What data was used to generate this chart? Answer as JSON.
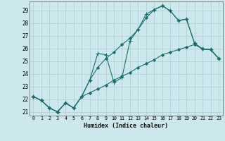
{
  "xlabel": "Humidex (Indice chaleur)",
  "background_color": "#cce8ec",
  "grid_color": "#aacdd4",
  "line_color": "#1a6e6a",
  "xlim": [
    -0.5,
    23.5
  ],
  "ylim": [
    20.7,
    29.7
  ],
  "yticks": [
    21,
    22,
    23,
    24,
    25,
    26,
    27,
    28,
    29
  ],
  "xticks": [
    0,
    1,
    2,
    3,
    4,
    5,
    6,
    7,
    8,
    9,
    10,
    11,
    12,
    13,
    14,
    15,
    16,
    17,
    18,
    19,
    20,
    21,
    22,
    23
  ],
  "series": [
    {
      "x": [
        0,
        1,
        2,
        3,
        4,
        5,
        6,
        7,
        8,
        9,
        10,
        11,
        12,
        13,
        14,
        15,
        16,
        17,
        18,
        19,
        20,
        21,
        22,
        23
      ],
      "y": [
        22.2,
        21.9,
        21.3,
        21.0,
        21.7,
        21.3,
        22.2,
        23.5,
        25.6,
        25.5,
        23.3,
        23.7,
        26.6,
        27.5,
        28.7,
        29.05,
        29.35,
        28.95,
        28.2,
        28.3,
        26.4,
        25.95,
        25.9,
        25.2
      ],
      "marker": "+"
    },
    {
      "x": [
        0,
        1,
        2,
        3,
        4,
        5,
        6,
        7,
        8,
        9,
        10,
        11,
        12,
        13,
        14,
        15,
        16,
        17,
        18,
        19,
        20,
        21,
        22,
        23
      ],
      "y": [
        22.2,
        21.9,
        21.3,
        21.0,
        21.7,
        21.3,
        22.2,
        23.5,
        24.5,
        25.2,
        25.7,
        26.3,
        26.8,
        27.5,
        28.4,
        29.05,
        29.35,
        28.95,
        28.2,
        28.3,
        26.4,
        25.95,
        25.9,
        25.2
      ],
      "marker": "D"
    },
    {
      "x": [
        0,
        1,
        2,
        3,
        4,
        5,
        6,
        7,
        8,
        9,
        10,
        11,
        12,
        13,
        14,
        15,
        16,
        17,
        18,
        19,
        20,
        21,
        22,
        23
      ],
      "y": [
        22.2,
        21.9,
        21.3,
        21.0,
        21.7,
        21.3,
        22.2,
        22.5,
        22.8,
        23.1,
        23.5,
        23.8,
        24.1,
        24.5,
        24.8,
        25.1,
        25.5,
        25.7,
        25.9,
        26.1,
        26.3,
        25.95,
        25.9,
        25.2
      ],
      "marker": "D"
    }
  ]
}
